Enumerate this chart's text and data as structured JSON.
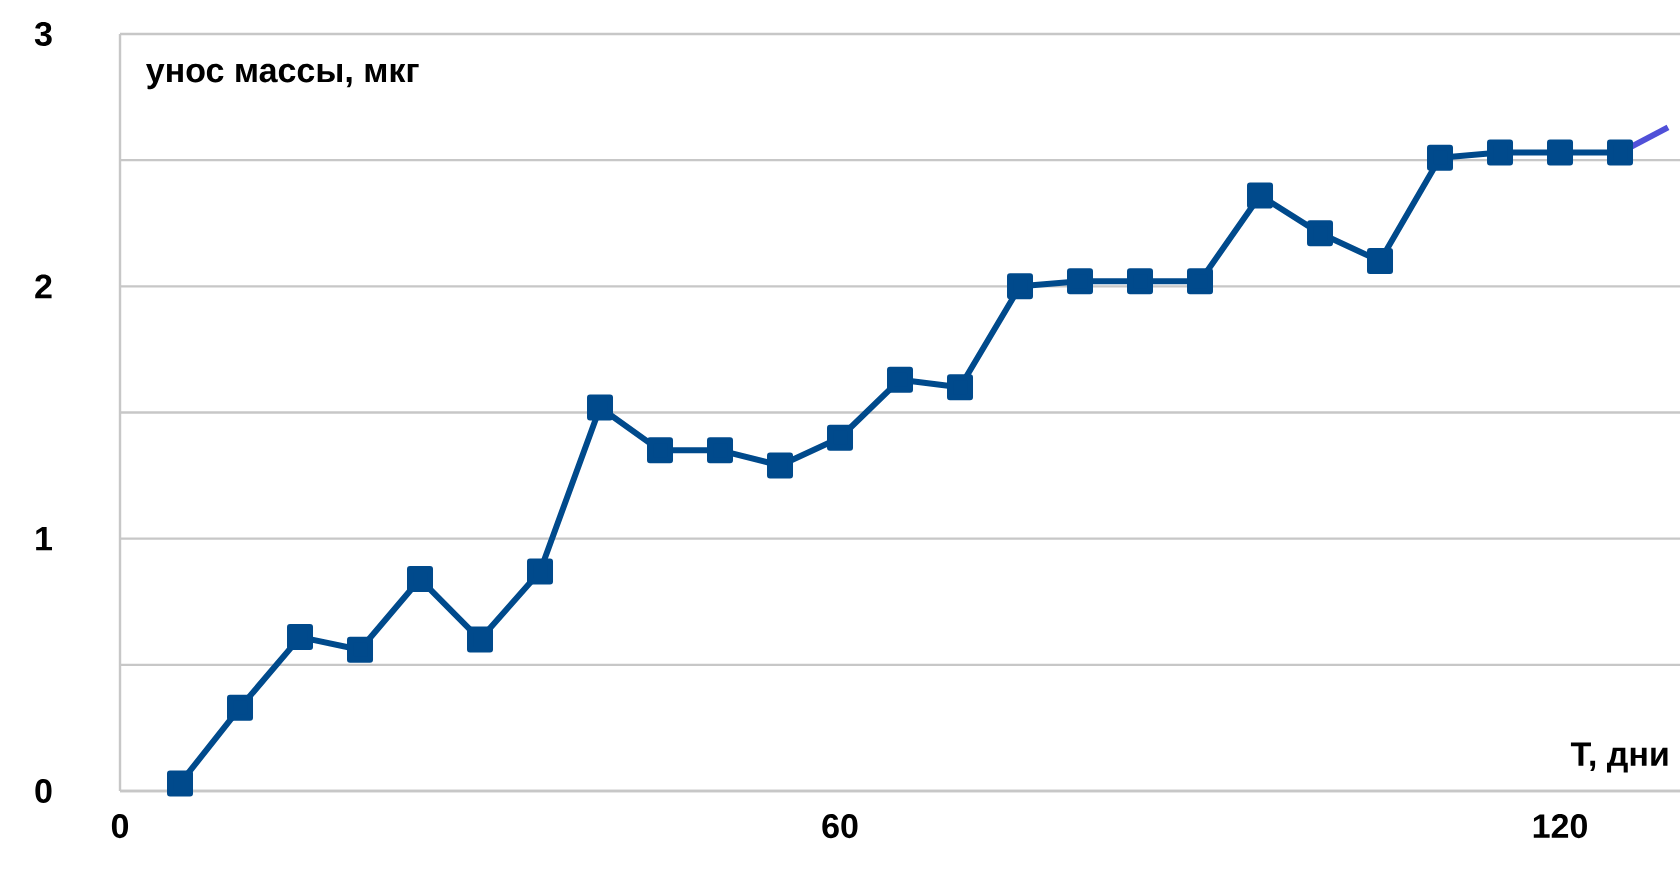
{
  "chart_data": {
    "type": "line",
    "xlabel": "Т, дни",
    "ylabel": "унос массы, мкг",
    "x": [
      5,
      10,
      15,
      20,
      25,
      30,
      35,
      40,
      45,
      50,
      55,
      60,
      65,
      70,
      75,
      80,
      85,
      90,
      95,
      100,
      105,
      110,
      115,
      120,
      125
    ],
    "series": [
      {
        "color": "#004a8c",
        "marker": "square",
        "values": [
          0.03,
          0.33,
          0.61,
          0.56,
          0.84,
          0.6,
          0.87,
          1.52,
          1.35,
          1.35,
          1.29,
          1.4,
          1.63,
          1.6,
          2.0,
          2.02,
          2.02,
          2.02,
          2.36,
          2.21,
          2.1,
          2.51,
          2.53,
          2.53,
          2.53
        ]
      },
      {
        "color": "#5050d8",
        "marker": "none",
        "x": [
          125,
          129
        ],
        "values": [
          2.53,
          2.63
        ]
      }
    ],
    "xlim": [
      0,
      130
    ],
    "ylim": [
      0,
      3
    ],
    "xticks": [
      0,
      60,
      120
    ],
    "yticks": [
      0,
      {
        "value": 0.5,
        "label": null
      },
      1,
      {
        "value": 1.5,
        "label": null
      },
      2,
      {
        "value": 2.5,
        "label": null
      },
      3
    ],
    "grid": "y"
  }
}
